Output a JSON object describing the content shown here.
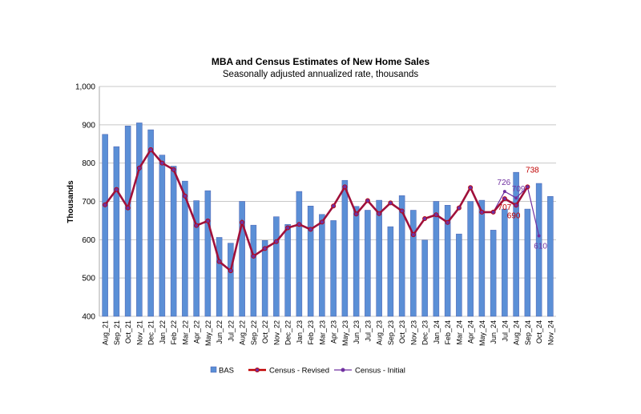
{
  "chart_data": {
    "type": "bar",
    "title": "MBA and Census Estimates of New Home Sales",
    "subtitle": "Seasonally adjusted annualized rate, thousands",
    "ylabel": "Thousands",
    "xlabel": "",
    "ylim": [
      400,
      1000
    ],
    "yticks": [
      "400",
      "500",
      "600",
      "700",
      "800",
      "900",
      "1,000"
    ],
    "grid": true,
    "legend_position": "bottom",
    "categories": [
      "Aug_21",
      "Sep_21",
      "Oct_21",
      "Nov_21",
      "Dec_21",
      "Jan_22",
      "Feb_22",
      "Mar_22",
      "Apr_22",
      "May_22",
      "Jun_22",
      "Jul_22",
      "Aug_22",
      "Sep_22",
      "Oct_22",
      "Nov_22",
      "Dec_22",
      "Jan_23",
      "Feb_23",
      "Mar_23",
      "Apr_23",
      "May_23",
      "Jun_23",
      "Jul_23",
      "Aug_23",
      "Sep_23",
      "Oct_23",
      "Nov_23",
      "Dec_23",
      "Jan_24",
      "Feb_24",
      "Mar_24",
      "Apr_24",
      "May_24",
      "Jun_24",
      "Jul_24",
      "Aug_24",
      "Sep_24",
      "Oct_24",
      "Nov_24"
    ],
    "series": [
      {
        "name": "BAS",
        "kind": "bar",
        "color": "#5b8fd6",
        "values": [
          875,
          843,
          897,
          905,
          887,
          821,
          792,
          753,
          702,
          728,
          606,
          591,
          700,
          638,
          598,
          660,
          640,
          726,
          688,
          666,
          650,
          755,
          687,
          677,
          703,
          634,
          715,
          677,
          599,
          700,
          690,
          615,
          700,
          703,
          625,
          680,
          776,
          680,
          747,
          713
        ]
      },
      {
        "name": "Census - Revised",
        "kind": "line",
        "color": "#c00000",
        "values": [
          691,
          731,
          683,
          787,
          835,
          800,
          783,
          714,
          637,
          649,
          543,
          519,
          645,
          557,
          577,
          595,
          631,
          640,
          627,
          646,
          688,
          738,
          667,
          702,
          668,
          696,
          675,
          613,
          655,
          665,
          645,
          683,
          736,
          672,
          672,
          707,
          690,
          738,
          null,
          null
        ],
        "labels": {
          "Jul_24": "707",
          "Aug_24": "690",
          "Sep_24": "738"
        }
      },
      {
        "name": "Census - Initial",
        "kind": "line",
        "color": "#7030a0",
        "values": [
          691,
          731,
          683,
          787,
          835,
          800,
          783,
          714,
          637,
          649,
          543,
          519,
          645,
          557,
          577,
          595,
          631,
          640,
          627,
          646,
          688,
          738,
          667,
          702,
          668,
          696,
          675,
          613,
          655,
          665,
          645,
          683,
          736,
          672,
          672,
          726,
          709,
          738,
          610,
          null
        ],
        "labels": {
          "Jul_24": "726",
          "Aug_24": "709",
          "Oct_24": "610"
        }
      }
    ]
  }
}
